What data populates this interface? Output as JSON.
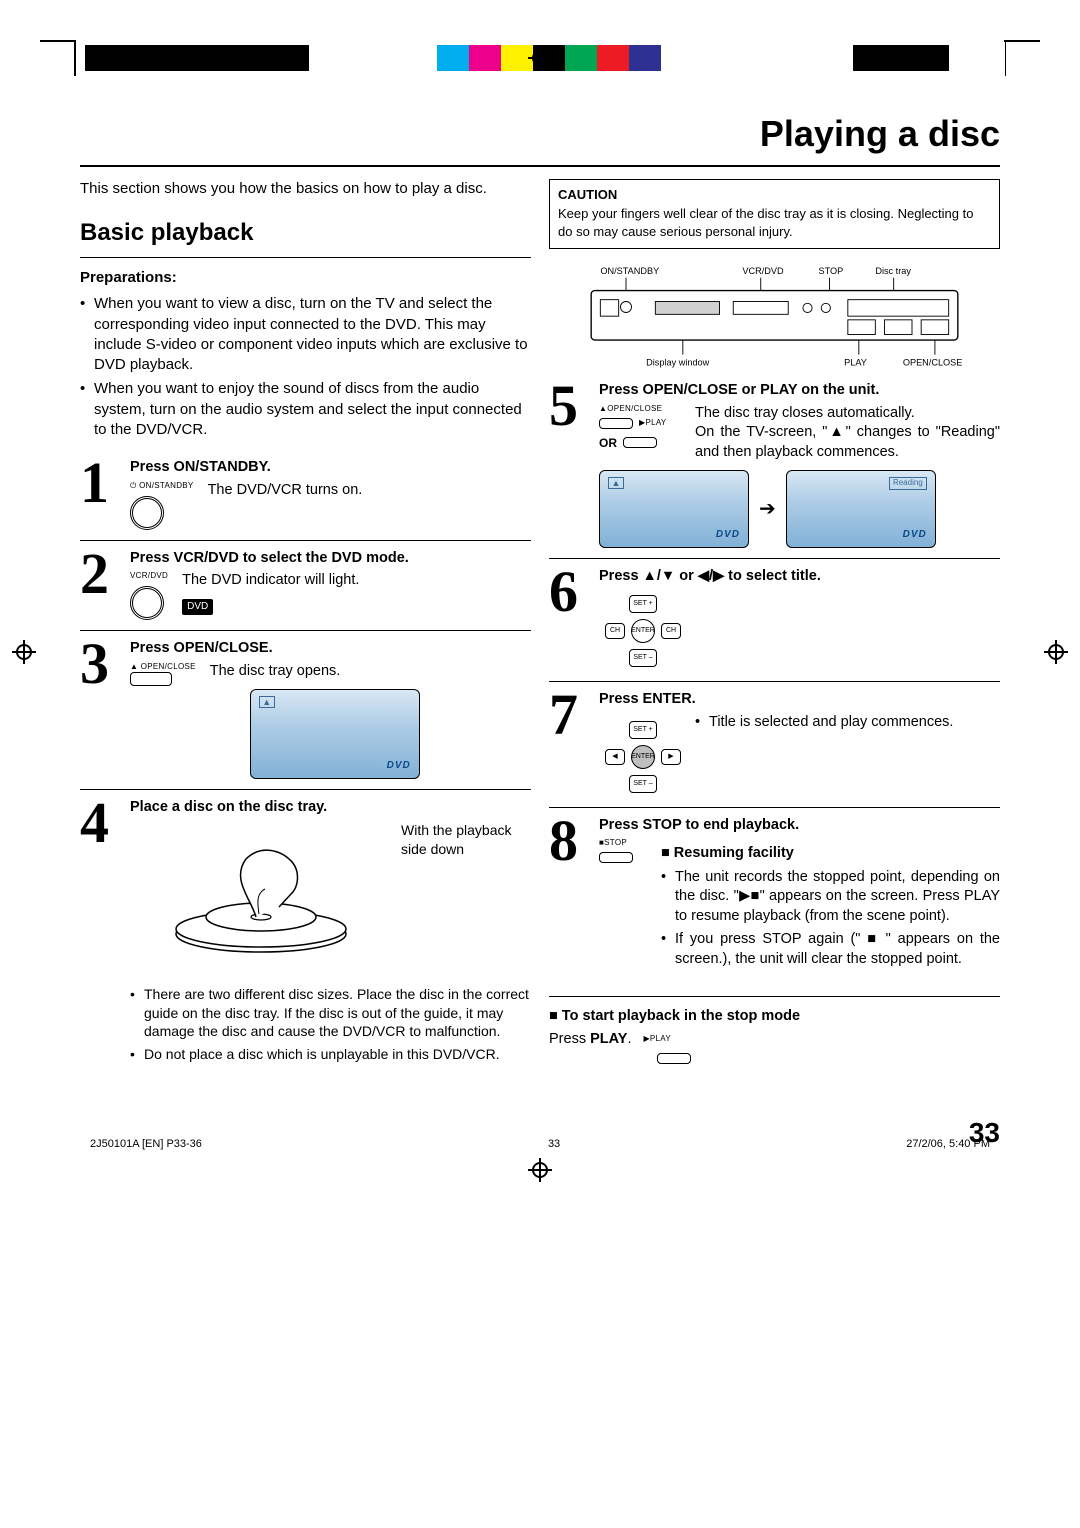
{
  "colorbar": [
    "#000000",
    "#000000",
    "#000000",
    "#000000",
    "#000000",
    "#000000",
    "#000000",
    "#ffffff",
    "#ffffff",
    "#ffffff",
    "#ffffff",
    "#00aeef",
    "#ec008c",
    "#fff200",
    "#000000",
    "#00a651",
    "#ed1c24",
    "#2e3192",
    "#ffffff",
    "#ffffff",
    "#ffffff",
    "#ffffff",
    "#ffffff",
    "#ffffff",
    "#000000",
    "#000000",
    "#000000"
  ],
  "page_title": "Playing a disc",
  "intro": "This section shows you how the basics on how to play a disc.",
  "caution": {
    "head": "CAUTION",
    "body": "Keep your fingers well clear of the disc tray as it is closing. Neglecting to do so may cause serious personal injury."
  },
  "section_title": "Basic playback",
  "prep_head": "Preparations:",
  "prep_bullets": [
    "When you want to view a disc, turn on the TV and select the corresponding video input connected to the DVD. This may include S-video or component video inputs which are exclusive to DVD playback.",
    "When you want to enjoy the sound of discs from the audio system, turn on the audio system and select the input connected to the DVD/VCR."
  ],
  "device_labels": {
    "on_standby": "ON/STANDBY",
    "vcr_dvd": "VCR/DVD",
    "stop": "STOP",
    "disc_tray": "Disc tray",
    "display_window": "Display window",
    "play": "PLAY",
    "open_close": "OPEN/CLOSE"
  },
  "steps": {
    "s1": {
      "head": "Press ON/STANDBY.",
      "desc": "The DVD/VCR turns on.",
      "mini": "ON/STANDBY"
    },
    "s2": {
      "head": "Press VCR/DVD to select the DVD mode.",
      "desc": "The DVD indicator will light.",
      "mini": "VCR/DVD",
      "badge": "DVD"
    },
    "s3": {
      "head": "Press OPEN/CLOSE.",
      "desc": "The disc tray opens.",
      "mini": "OPEN/CLOSE"
    },
    "s4": {
      "head": "Place a disc on the disc tray.",
      "side": "With the playback side down",
      "bullets": [
        "There are two different disc sizes. Place the disc in the correct guide on the disc tray. If the disc is out of the guide, it may damage the disc and cause the DVD/VCR to malfunction.",
        "Do not place a disc which is unplayable in this DVD/VCR."
      ]
    },
    "s5": {
      "head": "Press OPEN/CLOSE or PLAY on the unit.",
      "desc1": "The disc tray closes automatically.",
      "desc2": "On the TV-screen, \"▲\" changes to \"Reading\" and then playback commences.",
      "or": "OR",
      "mini_open": "OPEN/CLOSE",
      "mini_play": "PLAY",
      "reading": "Reading"
    },
    "s6": {
      "head": "Press ▲/▼ or ◀/▶ to select title.",
      "dpad": {
        "up": "SET +",
        "dn": "SET –",
        "lf": "CH",
        "rt": "CH",
        "c": "ENTER"
      }
    },
    "s7": {
      "head": "Press ENTER.",
      "bullet": "Title is selected and play commences.",
      "dpad": {
        "up": "SET +",
        "dn": "SET –",
        "lf": "",
        "rt": "",
        "c": "ENTER"
      }
    },
    "s8": {
      "head": "Press STOP to end playback.",
      "sub": "Resuming facility",
      "mini": "STOP",
      "bullets": [
        "The unit records the stopped point, depending on the disc. \"▶■\" appears on the screen. Press PLAY to resume playback (from the scene point).",
        "If you press STOP again (\" ■ \" appears on the screen.), the unit will clear the stopped point."
      ]
    }
  },
  "start_stop": {
    "head": "To start playback in the stop mode",
    "body": "Press PLAY.",
    "mini": "PLAY"
  },
  "page_num": "33",
  "footer": {
    "left": "2J50101A [EN] P33-36",
    "mid": "33",
    "right": "27/2/06, 5:40 PM"
  },
  "dvd_logo": "DVD"
}
